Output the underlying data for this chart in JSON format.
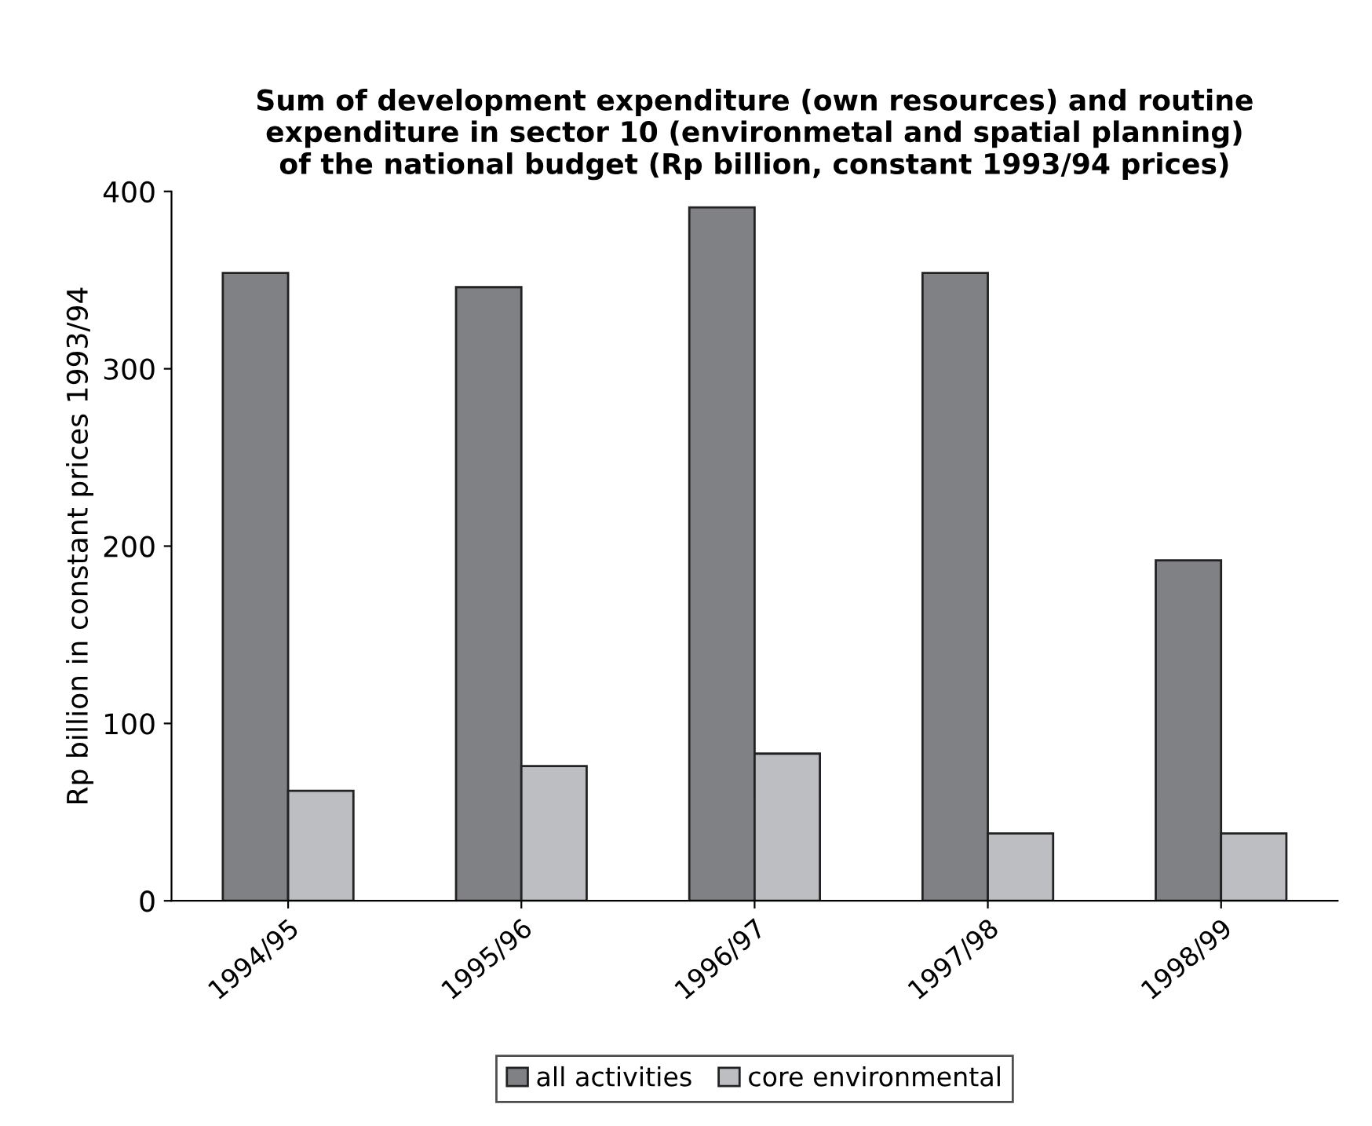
{
  "chart_data": {
    "type": "bar",
    "title": "Sum of development expenditure (own resources) and routine\nexpenditure in sector 10 (environmetal and spatial planning)\nof the national budget (Rp billion, constant 1993/94 prices)",
    "ylabel": "Rp billion in constant prices 1993/94",
    "categories": [
      "1994/95",
      "1995/96",
      "1996/97",
      "1997/98",
      "1998/99"
    ],
    "series": [
      {
        "name": "all activities",
        "color": "#808184",
        "values": [
          354,
          346,
          391,
          354,
          192
        ]
      },
      {
        "name": "core environmental",
        "color": "#bdbec1",
        "values": [
          62,
          76,
          83,
          38,
          38
        ]
      }
    ],
    "ylim": [
      0,
      400
    ],
    "yticks": [
      0,
      100,
      200,
      300,
      400
    ],
    "grid": false,
    "legend": "bottom"
  }
}
